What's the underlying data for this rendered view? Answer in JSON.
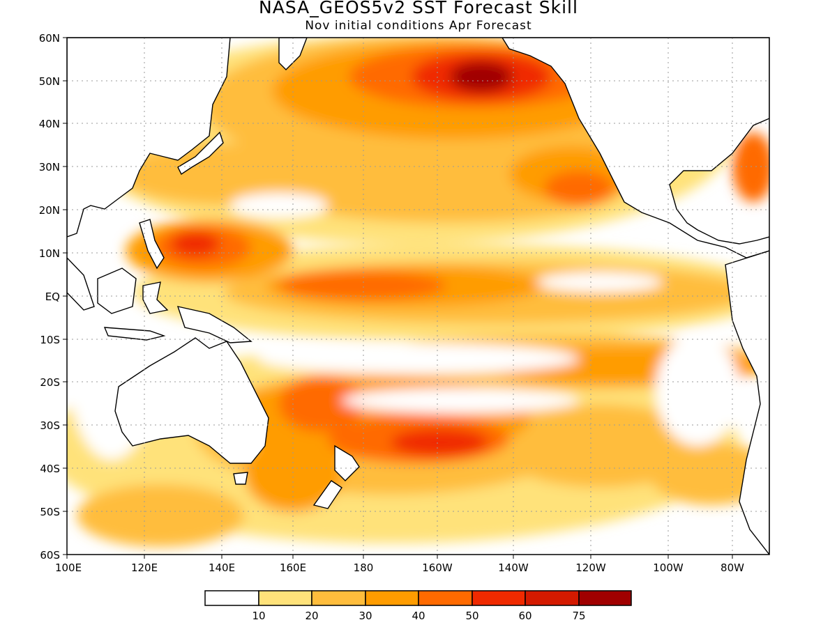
{
  "title": "NASA_GEOS5v2 SST Forecast Skill",
  "subtitle": "Nov initial conditions  Apr Forecast",
  "map": {
    "lat_labels": [
      "60N",
      "50N",
      "40N",
      "30N",
      "20N",
      "10N",
      "EQ",
      "10S",
      "20S",
      "30S",
      "40S",
      "50S",
      "60S"
    ],
    "lon_labels": [
      "100E",
      "120E",
      "140E",
      "160E",
      "180",
      "160W",
      "140W",
      "120W",
      "100W",
      "80W"
    ],
    "lon_range": [
      "100E",
      "70W"
    ],
    "lat_range": [
      "60S",
      "60N"
    ],
    "grid": "dotted"
  },
  "colorbar": {
    "labels": [
      "10",
      "20",
      "30",
      "40",
      "50",
      "60",
      "75"
    ],
    "colors": [
      "#ffffff",
      "#ffe27a",
      "#ffbd3c",
      "#ff9c00",
      "#ff6a00",
      "#f02a00",
      "#d41a00",
      "#a00000"
    ]
  }
}
